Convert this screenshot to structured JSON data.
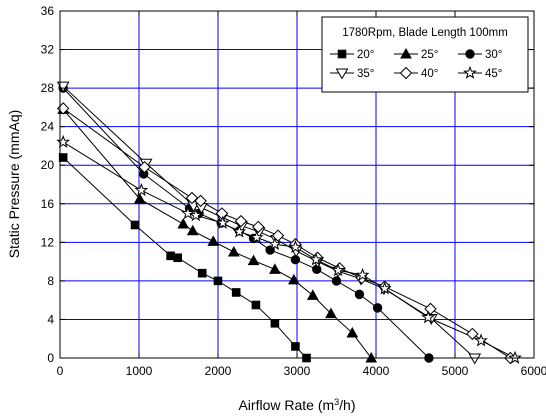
{
  "chart_data": {
    "type": "line",
    "title": "",
    "xlabel": "Airflow Rate (m",
    "xlabel_sup": "3",
    "xlabel_tail": "/h)",
    "ylabel": "Static Pressure (mmAq)",
    "xlim": [
      0,
      6000
    ],
    "ylim": [
      0,
      36
    ],
    "xticks": [
      0,
      1000,
      2000,
      3000,
      4000,
      5000,
      6000
    ],
    "yticks": [
      0,
      4,
      8,
      12,
      16,
      20,
      24,
      28,
      32,
      36
    ],
    "grid": true,
    "grid_color": "#0000ff",
    "line_color": "#000000",
    "legend": {
      "placement": "top-right",
      "title": "1780Rpm, Blade Length 100mm"
    },
    "series": [
      {
        "name": "20°",
        "marker": "square",
        "fill": "filled",
        "points": [
          [
            40,
            20.8
          ],
          [
            950,
            13.8
          ],
          [
            1400,
            10.6
          ],
          [
            1490,
            10.4
          ],
          [
            1800,
            8.8
          ],
          [
            2000,
            8.0
          ],
          [
            2230,
            6.8
          ],
          [
            2480,
            5.5
          ],
          [
            2720,
            3.6
          ],
          [
            2980,
            1.2
          ],
          [
            3120,
            0.0
          ]
        ]
      },
      {
        "name": "25°",
        "marker": "triangle-up",
        "fill": "filled",
        "points": [
          [
            40,
            25.8
          ],
          [
            1010,
            16.5
          ],
          [
            1560,
            13.9
          ],
          [
            1680,
            13.2
          ],
          [
            1940,
            12.1
          ],
          [
            2200,
            11.0
          ],
          [
            2450,
            10.1
          ],
          [
            2720,
            9.2
          ],
          [
            2960,
            8.1
          ],
          [
            3200,
            6.5
          ],
          [
            3430,
            4.6
          ],
          [
            3700,
            2.6
          ],
          [
            3940,
            0.0
          ]
        ]
      },
      {
        "name": "30°",
        "marker": "circle",
        "fill": "filled",
        "points": [
          [
            40,
            28.0
          ],
          [
            1060,
            19.1
          ],
          [
            1640,
            15.5
          ],
          [
            1760,
            15.0
          ],
          [
            2040,
            14.0
          ],
          [
            2270,
            13.2
          ],
          [
            2450,
            12.4
          ],
          [
            2660,
            11.2
          ],
          [
            2980,
            10.2
          ],
          [
            3250,
            9.2
          ],
          [
            3500,
            8.0
          ],
          [
            3790,
            6.6
          ],
          [
            4020,
            5.2
          ],
          [
            4670,
            0.0
          ]
        ]
      },
      {
        "name": "35°",
        "marker": "triangle-down",
        "fill": "open",
        "points": [
          [
            40,
            28.2
          ],
          [
            1090,
            20.2
          ],
          [
            1690,
            15.8
          ],
          [
            1790,
            15.6
          ],
          [
            2050,
            14.6
          ],
          [
            2300,
            13.7
          ],
          [
            2520,
            13.1
          ],
          [
            2740,
            12.3
          ],
          [
            2990,
            11.1
          ],
          [
            3260,
            10.0
          ],
          [
            3520,
            9.0
          ],
          [
            3810,
            8.2
          ],
          [
            4100,
            7.2
          ],
          [
            4700,
            4.1
          ],
          [
            5250,
            0.0
          ]
        ]
      },
      {
        "name": "40°",
        "marker": "diamond",
        "fill": "open",
        "points": [
          [
            40,
            25.9
          ],
          [
            1070,
            19.8
          ],
          [
            1670,
            16.6
          ],
          [
            1780,
            16.3
          ],
          [
            2050,
            15.0
          ],
          [
            2290,
            14.2
          ],
          [
            2510,
            13.6
          ],
          [
            2760,
            12.7
          ],
          [
            2980,
            11.8
          ],
          [
            3260,
            10.4
          ],
          [
            3540,
            9.3
          ],
          [
            3820,
            8.3
          ],
          [
            4110,
            7.4
          ],
          [
            4690,
            5.1
          ],
          [
            5220,
            2.5
          ],
          [
            5700,
            0.0
          ]
        ]
      },
      {
        "name": "45°",
        "marker": "star",
        "fill": "open",
        "points": [
          [
            40,
            22.4
          ],
          [
            1030,
            17.4
          ],
          [
            1620,
            15.0
          ],
          [
            1720,
            14.8
          ],
          [
            2060,
            14.0
          ],
          [
            2270,
            13.1
          ],
          [
            2490,
            12.5
          ],
          [
            2720,
            11.8
          ],
          [
            2980,
            11.5
          ],
          [
            3240,
            10.2
          ],
          [
            3520,
            9.1
          ],
          [
            3830,
            8.6
          ],
          [
            4110,
            7.2
          ],
          [
            4660,
            4.2
          ],
          [
            5330,
            1.8
          ],
          [
            5760,
            0.0
          ]
        ]
      }
    ]
  }
}
